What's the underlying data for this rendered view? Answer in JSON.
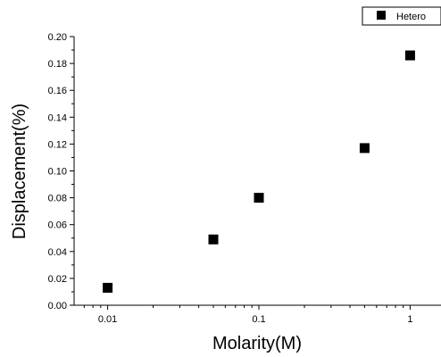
{
  "chart_data": {
    "type": "scatter",
    "xlabel": "Molarity(M)",
    "ylabel": "Displacement(%)",
    "xscale": "log",
    "xlim": [
      0.006,
      1.6
    ],
    "ylim": [
      0,
      0.2
    ],
    "x_ticks": [
      0.01,
      0.1,
      1
    ],
    "x_tick_labels": [
      "0.01",
      "0.1",
      "1"
    ],
    "y_ticks": [
      0,
      0.02,
      0.04,
      0.06,
      0.08,
      0.1,
      0.12,
      0.14,
      0.16,
      0.18,
      0.2
    ],
    "y_tick_labels": [
      "0.00",
      "0.02",
      "0.04",
      "0.06",
      "0.08",
      "0.10",
      "0.12",
      "0.14",
      "0.16",
      "0.18",
      "0.20"
    ],
    "legend_position": "top-right",
    "marker_color": "#000000",
    "series": [
      {
        "name": "Hetero",
        "marker": "square",
        "x": [
          0.01,
          0.05,
          0.1,
          0.5,
          1
        ],
        "y": [
          0.013,
          0.049,
          0.08,
          0.117,
          0.186
        ]
      }
    ]
  }
}
